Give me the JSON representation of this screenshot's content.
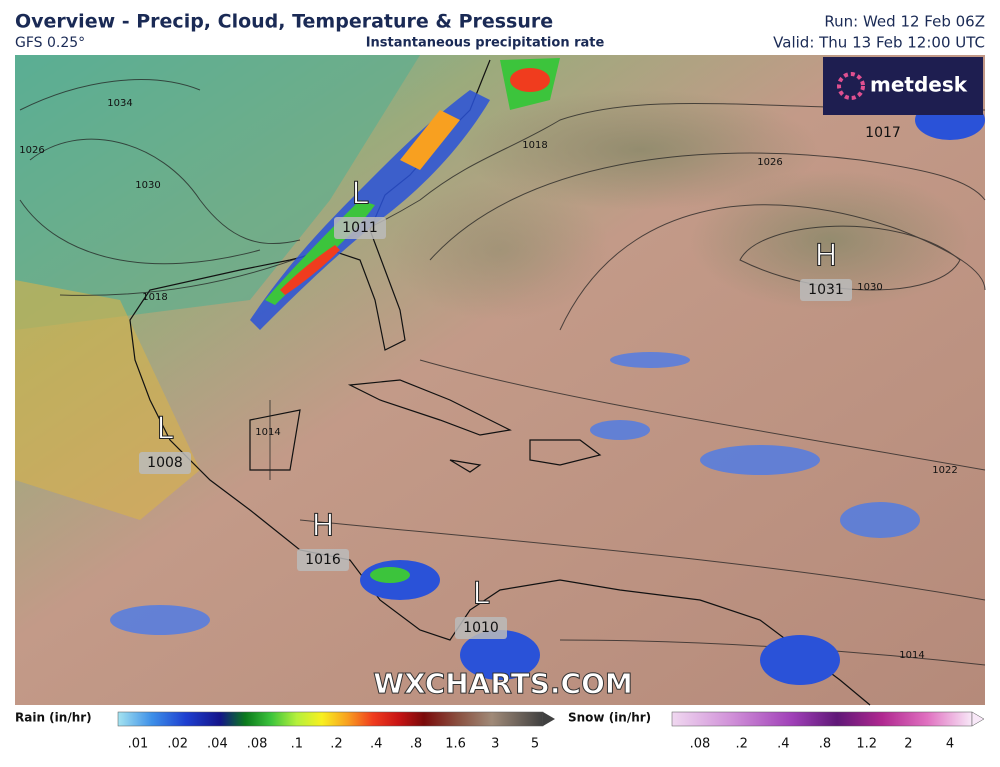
{
  "header": {
    "title": "Overview - Precip, Cloud, Temperature & Pressure",
    "model": "GFS 0.25°",
    "subtitle": "Instantaneous precipitation rate",
    "run": "Run: Wed 12 Feb 06Z",
    "valid": "Valid: Thu 13 Feb 12:00 UTC"
  },
  "logo": "metdesk",
  "watermark": "WXCHARTS.COM",
  "pressure_centers": [
    {
      "letter": "L",
      "value": "1011"
    },
    {
      "letter": "H",
      "value": "1031"
    },
    {
      "letter": "L",
      "value": "1008"
    },
    {
      "letter": "H",
      "value": "1016"
    },
    {
      "letter": "L",
      "value": "1010"
    }
  ],
  "isobar_labels": [
    "1034",
    "1030",
    "1026",
    "1018",
    "1018",
    "1026",
    "1017",
    "1030",
    "1014",
    "1022",
    "1014"
  ],
  "legend": {
    "rain": {
      "label": "Rain (in/hr)",
      "ticks": [
        ".01",
        ".02",
        ".04",
        ".08",
        ".1",
        ".2",
        ".4",
        ".8",
        "1.6",
        "3",
        "5"
      ]
    },
    "snow": {
      "label": "Snow (in/hr)",
      "ticks": [
        ".08",
        ".2",
        ".4",
        ".8",
        "1.2",
        "2",
        "4"
      ]
    }
  }
}
